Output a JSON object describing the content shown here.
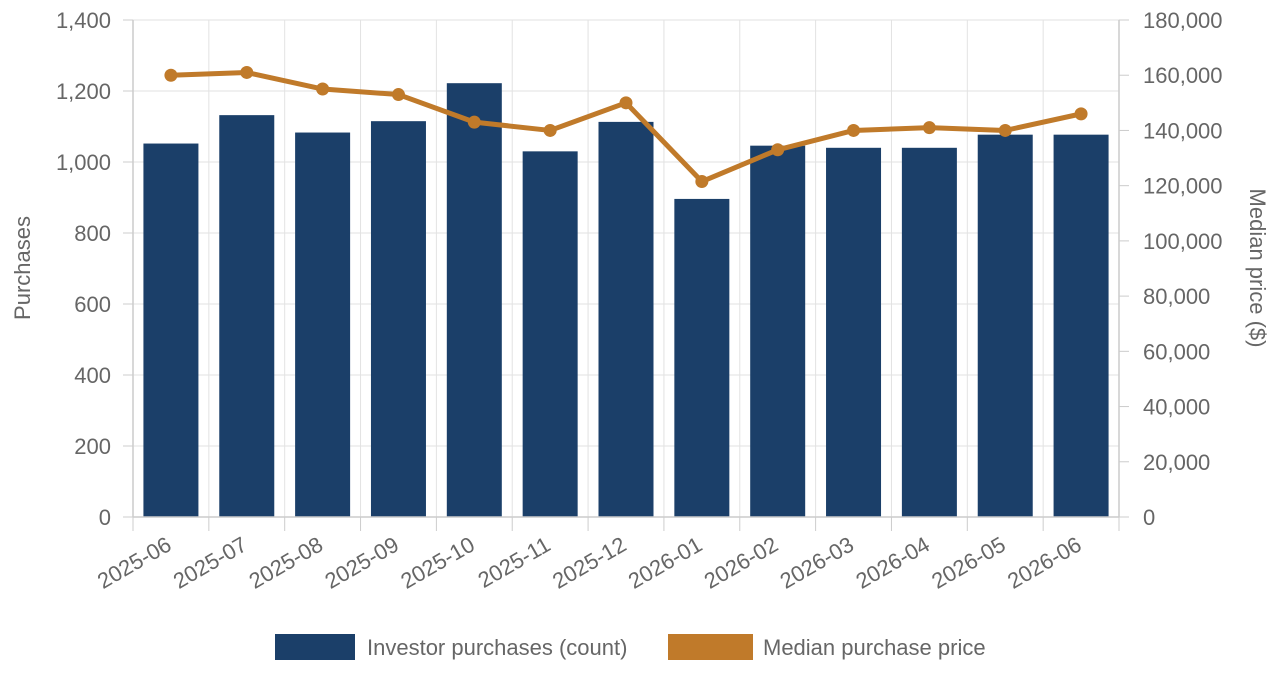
{
  "chart_data": {
    "type": "bar",
    "categories": [
      "2025-06",
      "2025-07",
      "2025-08",
      "2025-09",
      "2025-10",
      "2025-11",
      "2025-12",
      "2026-01",
      "2026-02",
      "2026-03",
      "2026-04",
      "2026-05",
      "2026-06"
    ],
    "series": [
      {
        "name": "Investor purchases (count)",
        "type": "bar",
        "axis": "left",
        "color": "#1b3f69",
        "values": [
          1052,
          1132,
          1083,
          1115,
          1222,
          1030,
          1113,
          896,
          1046,
          1040,
          1040,
          1077,
          1077
        ]
      },
      {
        "name": "Median purchase price",
        "type": "line",
        "axis": "right",
        "color": "#c07a2a",
        "values": [
          160000,
          161000,
          155000,
          153000,
          143000,
          140000,
          150000,
          121500,
          133000,
          140000,
          141000,
          140000,
          146000
        ]
      }
    ],
    "y_left": {
      "label": "Purchases",
      "range": [
        0,
        1400
      ],
      "ticks": [
        "0",
        "200",
        "400",
        "600",
        "800",
        "1,000",
        "1,200",
        "1,400"
      ]
    },
    "y_right": {
      "label": "Median price ($)",
      "range": [
        0,
        180000
      ],
      "ticks": [
        "0",
        "20,000",
        "40,000",
        "60,000",
        "80,000",
        "100,000",
        "120,000",
        "140,000",
        "160,000",
        "180,000"
      ]
    },
    "grid": true,
    "legend_position": "bottom"
  }
}
